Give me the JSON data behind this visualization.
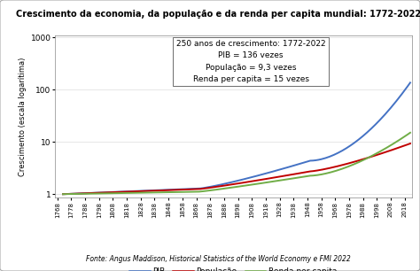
{
  "title": "Crescimento da economia, da população e da renda per capita mundial: 1772-2022",
  "ylabel": "Crescimento (escala logarítima)",
  "annotation_lines": [
    "250 anos de crescimento: 1772-2022",
    "PIB = 136 vezes",
    "População = 9,3 vezes",
    "Renda per capita = 15 vezes"
  ],
  "footnote": "Fonte: Angus Maddison, Historical Statistics of the World Economy e FMI 2022",
  "legend_labels": [
    "PIB",
    "População",
    "Renda per capita"
  ],
  "line_colors": [
    "#4472C4",
    "#C00000",
    "#70AD47"
  ],
  "start_year": 1772,
  "end_year": 2022,
  "pib_end": 136,
  "pop_end": 9.3,
  "renda_end": 15,
  "ylim_min": 0.85,
  "ylim_max": 1100,
  "xlim_min": 1766,
  "xlim_max": 2023,
  "xtick_start": 1768,
  "xtick_end": 2018,
  "xtick_step": 10,
  "yticks": [
    1,
    10,
    100,
    1000
  ],
  "ytick_labels": [
    "1",
    "10",
    "100",
    "1000"
  ]
}
